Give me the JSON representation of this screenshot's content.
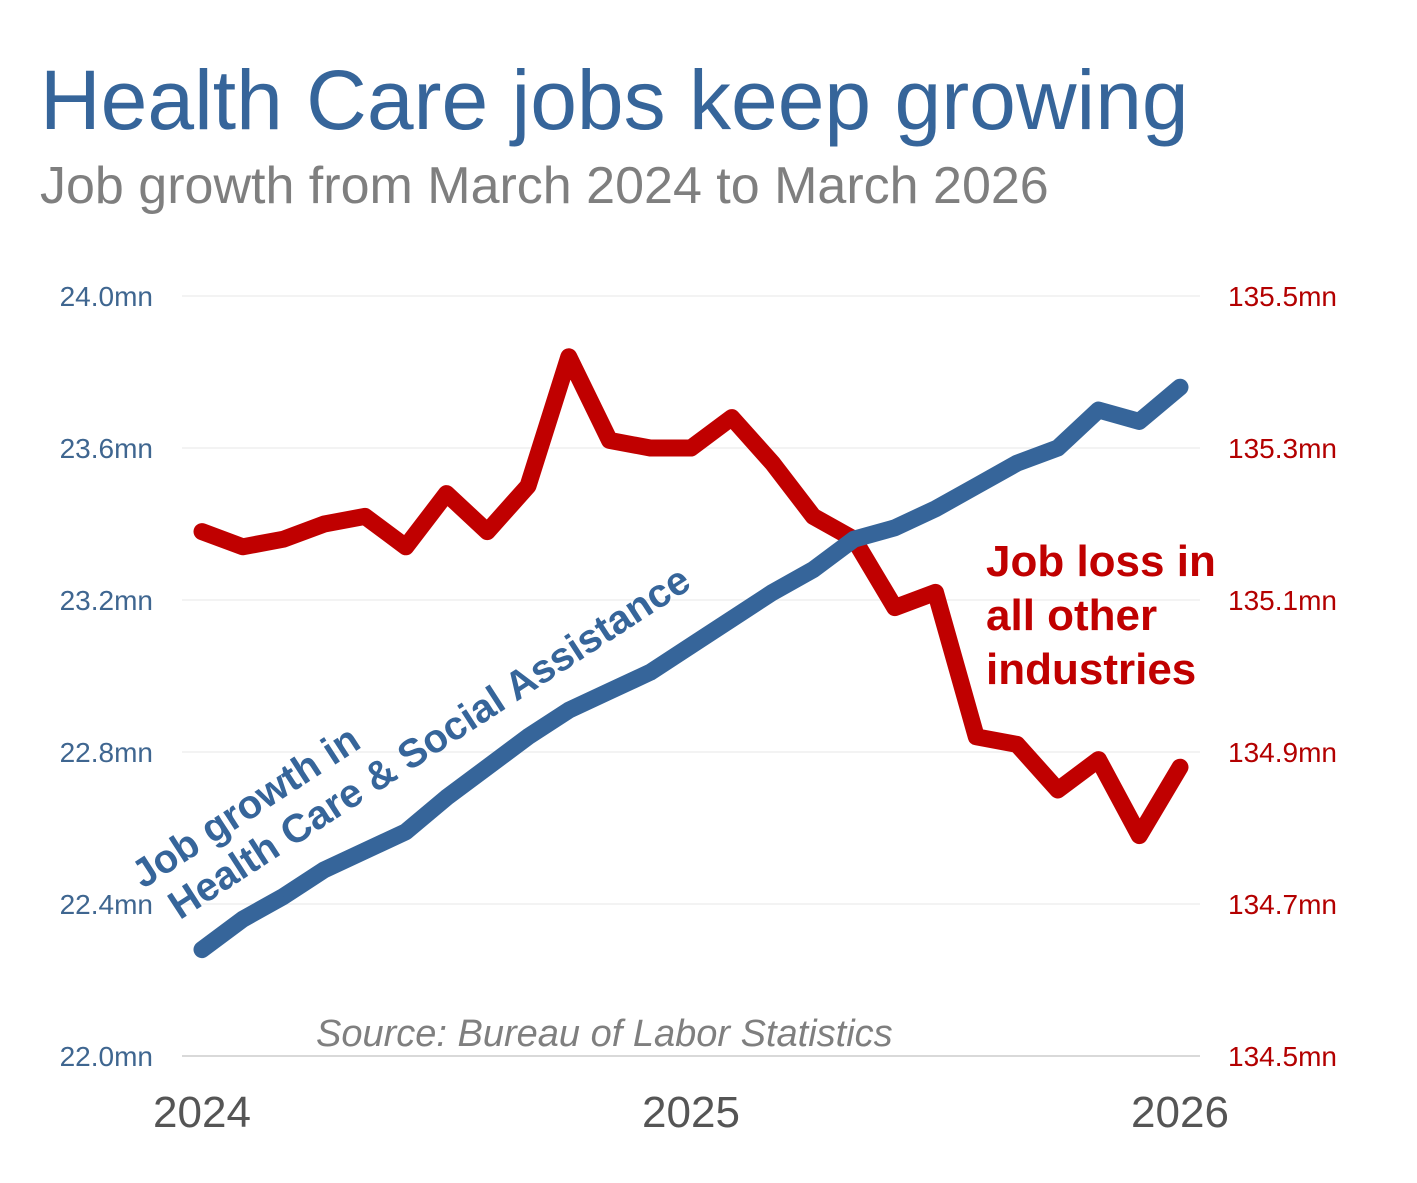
{
  "chart_data": {
    "type": "line",
    "title": "Health Care jobs keep growing",
    "subtitle": "Job growth from March 2024 to March 2026",
    "source": "Source: Bureau of Labor Statistics",
    "x_ticks": [
      "2024",
      "2025",
      "2026"
    ],
    "x_range": [
      "2024-03",
      "2026-03"
    ],
    "left_axis": {
      "ticks": [
        "24.0mn",
        "23.6mn",
        "23.2mn",
        "22.8mn",
        "22.4mn",
        "22.0mn"
      ],
      "tick_values": [
        24.0,
        23.6,
        23.2,
        22.8,
        22.4,
        22.0
      ],
      "ylim": [
        22.0,
        24.0
      ],
      "color": "#3f6690"
    },
    "right_axis": {
      "ticks": [
        "135.5mn",
        "135.3mn",
        "135.1mn",
        "134.9mn",
        "134.7mn",
        "134.5mn"
      ],
      "tick_values": [
        135.5,
        135.3,
        135.1,
        134.9,
        134.7,
        134.5
      ],
      "ylim": [
        134.5,
        135.5
      ],
      "color": "#b30000"
    },
    "grid": true,
    "series": [
      {
        "name": "Job growth in Health Care & Social Assistance",
        "label_lines": [
          "Job growth in",
          "Health Care & Social Assistance"
        ],
        "axis": "left",
        "color": "#36659a",
        "values": [
          22.28,
          22.36,
          22.42,
          22.49,
          22.54,
          22.59,
          22.68,
          22.76,
          22.84,
          22.91,
          22.96,
          23.01,
          23.08,
          23.15,
          23.22,
          23.28,
          23.36,
          23.39,
          23.44,
          23.5,
          23.56,
          23.6,
          23.7,
          23.67,
          23.76
        ]
      },
      {
        "name": "Job loss in all other industries",
        "label_lines": [
          "Job loss in",
          "all other",
          "industries"
        ],
        "axis": "right",
        "color": "#c00000",
        "values": [
          135.19,
          135.17,
          135.18,
          135.2,
          135.21,
          135.17,
          135.24,
          135.19,
          135.25,
          135.42,
          135.31,
          135.3,
          135.3,
          135.34,
          135.28,
          135.21,
          135.18,
          135.09,
          135.11,
          134.92,
          134.91,
          134.85,
          134.89,
          134.79,
          134.88
        ]
      }
    ]
  }
}
